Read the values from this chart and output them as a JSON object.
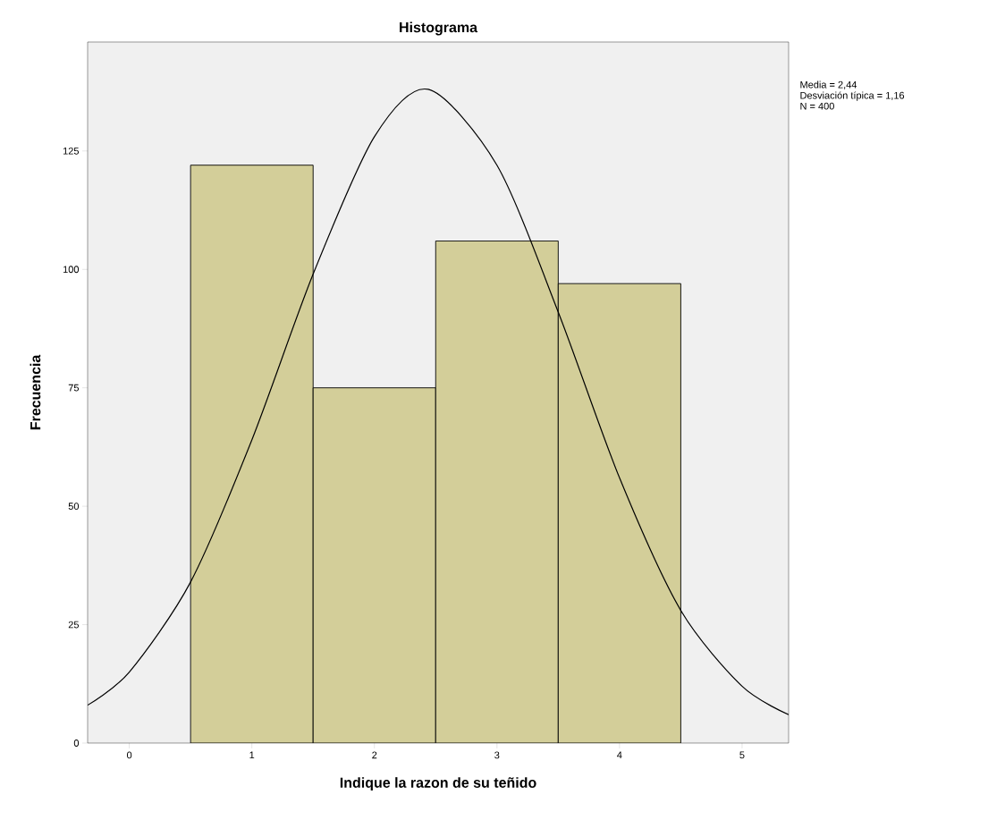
{
  "chart_data": {
    "type": "histogram",
    "title": "Histograma",
    "xlabel": "Indique la razon de su teñido",
    "ylabel": "Frecuencia",
    "bins": [
      0.5,
      1.5,
      2.5,
      3.5,
      4.5
    ],
    "values": [
      122,
      75,
      106,
      97
    ],
    "color": "#d3ce99",
    "series": [
      {
        "type": "line",
        "color": "#000000",
        "x": [
          -0.34,
          0,
          0.5,
          1,
          1.5,
          2,
          2.44,
          3,
          3.5,
          4,
          4.5,
          5,
          5.38
        ],
        "values": [
          8,
          15,
          34,
          64,
          99,
          128,
          138,
          122,
          91,
          56,
          28,
          12,
          6
        ]
      }
    ],
    "xlim": [
      -0.34,
      5.38
    ],
    "ylim": [
      0,
      148
    ],
    "xticks": [
      0,
      1,
      2,
      3,
      4,
      5
    ],
    "yticks": [
      0,
      25,
      50,
      75,
      100,
      125
    ],
    "annotations": [
      "Media = 2,44",
      "Desviación típica = 1,16",
      "N = 400"
    ]
  }
}
